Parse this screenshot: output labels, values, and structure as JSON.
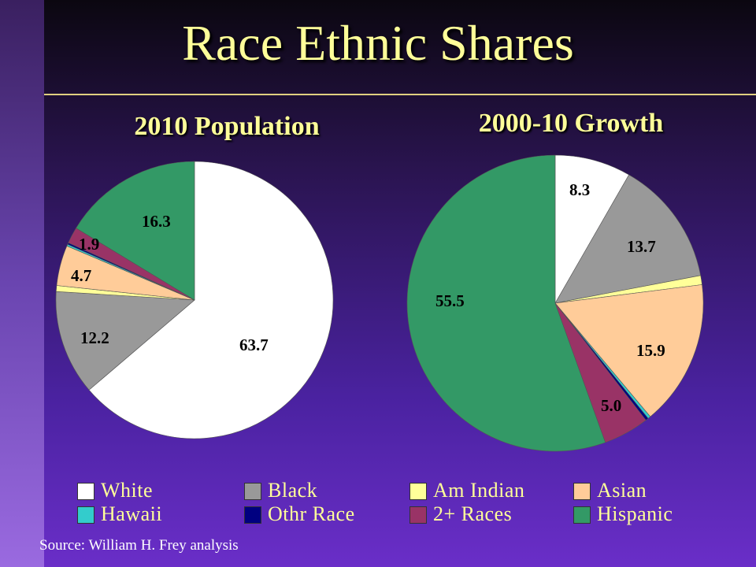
{
  "title": "Race Ethnic Shares",
  "source": "Source: William H. Frey analysis",
  "legend": [
    {
      "label": "White",
      "color": "#ffffff"
    },
    {
      "label": "Black",
      "color": "#999999"
    },
    {
      "label": "Am Indian",
      "color": "#ffff99"
    },
    {
      "label": "Asian",
      "color": "#ffcc99"
    },
    {
      "label": "Hawaii",
      "color": "#33cccc"
    },
    {
      "label": "Othr Race",
      "color": "#000080"
    },
    {
      "label": "2+ Races",
      "color": "#993366"
    },
    {
      "label": "Hispanic",
      "color": "#339966"
    }
  ],
  "chart_data": [
    {
      "type": "pie",
      "title": "2010 Population",
      "categories": [
        "White",
        "Black",
        "Am Indian",
        "Asian",
        "Hawaii",
        "Othr Race",
        "2+ Races",
        "Hispanic"
      ],
      "values": [
        63.7,
        12.2,
        0.7,
        4.7,
        0.2,
        0.2,
        1.9,
        16.3
      ],
      "labels": [
        "63.7",
        "12.2",
        "",
        "4.7",
        "",
        "",
        "1.9",
        "16.3"
      ],
      "colors": [
        "#ffffff",
        "#999999",
        "#ffff99",
        "#ffcc99",
        "#33cccc",
        "#000080",
        "#993366",
        "#339966"
      ]
    },
    {
      "type": "pie",
      "title": "2000-10 Growth",
      "categories": [
        "White",
        "Black",
        "Am Indian",
        "Asian",
        "Hawaii",
        "Othr Race",
        "2+ Races",
        "Hispanic"
      ],
      "values": [
        8.3,
        13.7,
        1.0,
        15.9,
        0.3,
        0.3,
        5.0,
        55.5
      ],
      "labels": [
        "8.3",
        "13.7",
        "",
        "15.9",
        "",
        "",
        "5.0",
        "55.5"
      ],
      "colors": [
        "#ffffff",
        "#999999",
        "#ffff99",
        "#ffcc99",
        "#33cccc",
        "#000080",
        "#993366",
        "#339966"
      ]
    }
  ]
}
